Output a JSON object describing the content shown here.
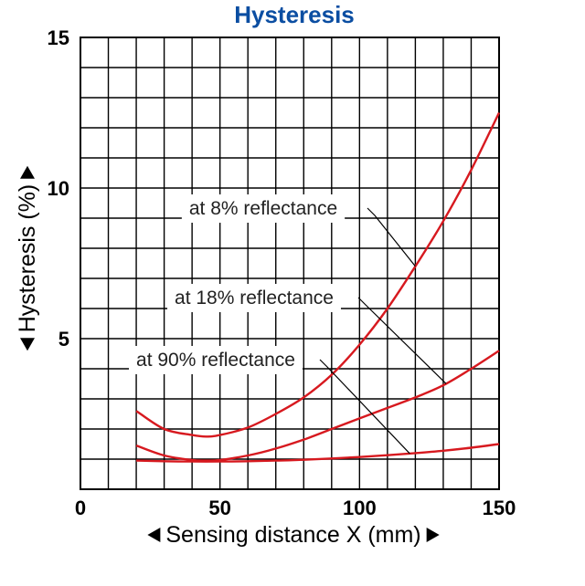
{
  "chart_data": {
    "type": "line",
    "title": "Hysteresis",
    "xlabel": "Sensing distance X (mm)",
    "ylabel": "Hysteresis (%)",
    "xlim": [
      0,
      150
    ],
    "ylim": [
      0,
      15
    ],
    "x_ticks": [
      0,
      50,
      100,
      150
    ],
    "y_ticks": [
      5,
      10,
      15
    ],
    "grid": true,
    "series": [
      {
        "name": "at 8% reflectance",
        "x": [
          20,
          30,
          40,
          45,
          50,
          60,
          70,
          80,
          90,
          100,
          110,
          120,
          130,
          140,
          150
        ],
        "y": [
          2.6,
          2.0,
          1.8,
          1.75,
          1.8,
          2.05,
          2.5,
          3.05,
          3.8,
          4.8,
          6.0,
          7.4,
          8.9,
          10.6,
          12.5
        ]
      },
      {
        "name": "at 18% reflectance",
        "x": [
          20,
          30,
          40,
          45,
          50,
          60,
          70,
          80,
          90,
          100,
          110,
          120,
          130,
          140,
          150
        ],
        "y": [
          1.45,
          1.12,
          0.97,
          0.95,
          0.97,
          1.12,
          1.35,
          1.65,
          2.0,
          2.35,
          2.7,
          3.05,
          3.45,
          4.0,
          4.6
        ]
      },
      {
        "name": "at 90% reflectance",
        "x": [
          20,
          30,
          40,
          50,
          60,
          70,
          80,
          90,
          100,
          110,
          120,
          130,
          140,
          150
        ],
        "y": [
          0.95,
          0.93,
          0.92,
          0.92,
          0.93,
          0.95,
          0.98,
          1.02,
          1.07,
          1.13,
          1.2,
          1.28,
          1.38,
          1.5
        ]
      }
    ],
    "annotations": [
      {
        "text": "at 8% reflectance",
        "series": 0
      },
      {
        "text": "at 18% reflectance",
        "series": 1
      },
      {
        "text": "at 90% reflectance",
        "series": 2
      }
    ],
    "colors": {
      "title": "#0b4ea2",
      "series": "#d7191f"
    }
  }
}
